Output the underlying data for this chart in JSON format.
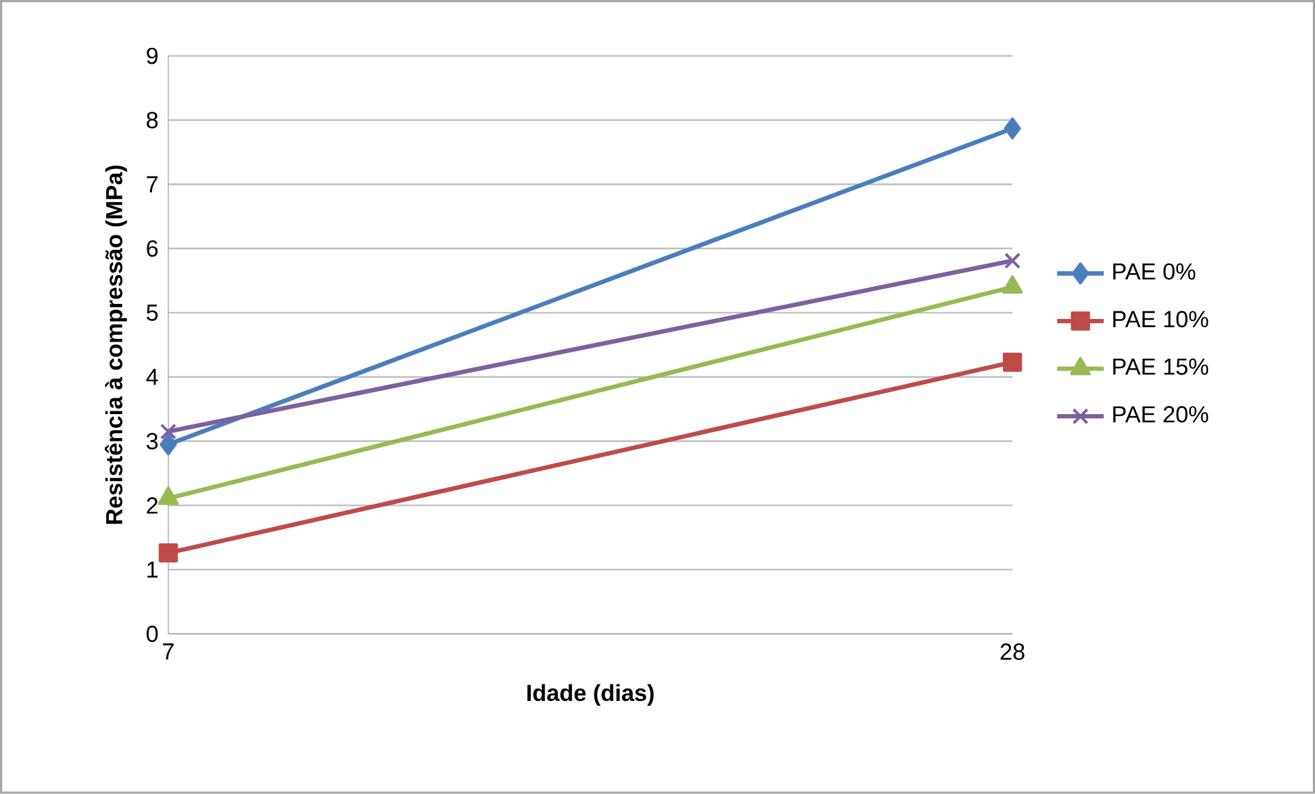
{
  "chart_data": {
    "type": "line",
    "xlabel": "Idade (dias)",
    "ylabel": "Resistência à compressão (MPa)",
    "x": [
      7,
      28
    ],
    "xlim": [
      7,
      28
    ],
    "xticks": [
      7,
      28
    ],
    "ylim": [
      0,
      9
    ],
    "yticks": [
      0,
      1,
      2,
      3,
      4,
      5,
      6,
      7,
      8,
      9
    ],
    "grid": "y",
    "legend": "right",
    "series": [
      {
        "name": "PAE 0%",
        "color": "#4a7ebb",
        "marker": "diamond",
        "values": [
          2.95,
          7.87
        ]
      },
      {
        "name": "PAE 10%",
        "color": "#be4b48",
        "marker": "square",
        "values": [
          1.26,
          4.23
        ]
      },
      {
        "name": "PAE 15%",
        "color": "#98b954",
        "marker": "triangle",
        "values": [
          2.11,
          5.4
        ]
      },
      {
        "name": "PAE 20%",
        "color": "#7d60a0",
        "marker": "cross",
        "values": [
          3.15,
          5.81
        ]
      }
    ]
  }
}
